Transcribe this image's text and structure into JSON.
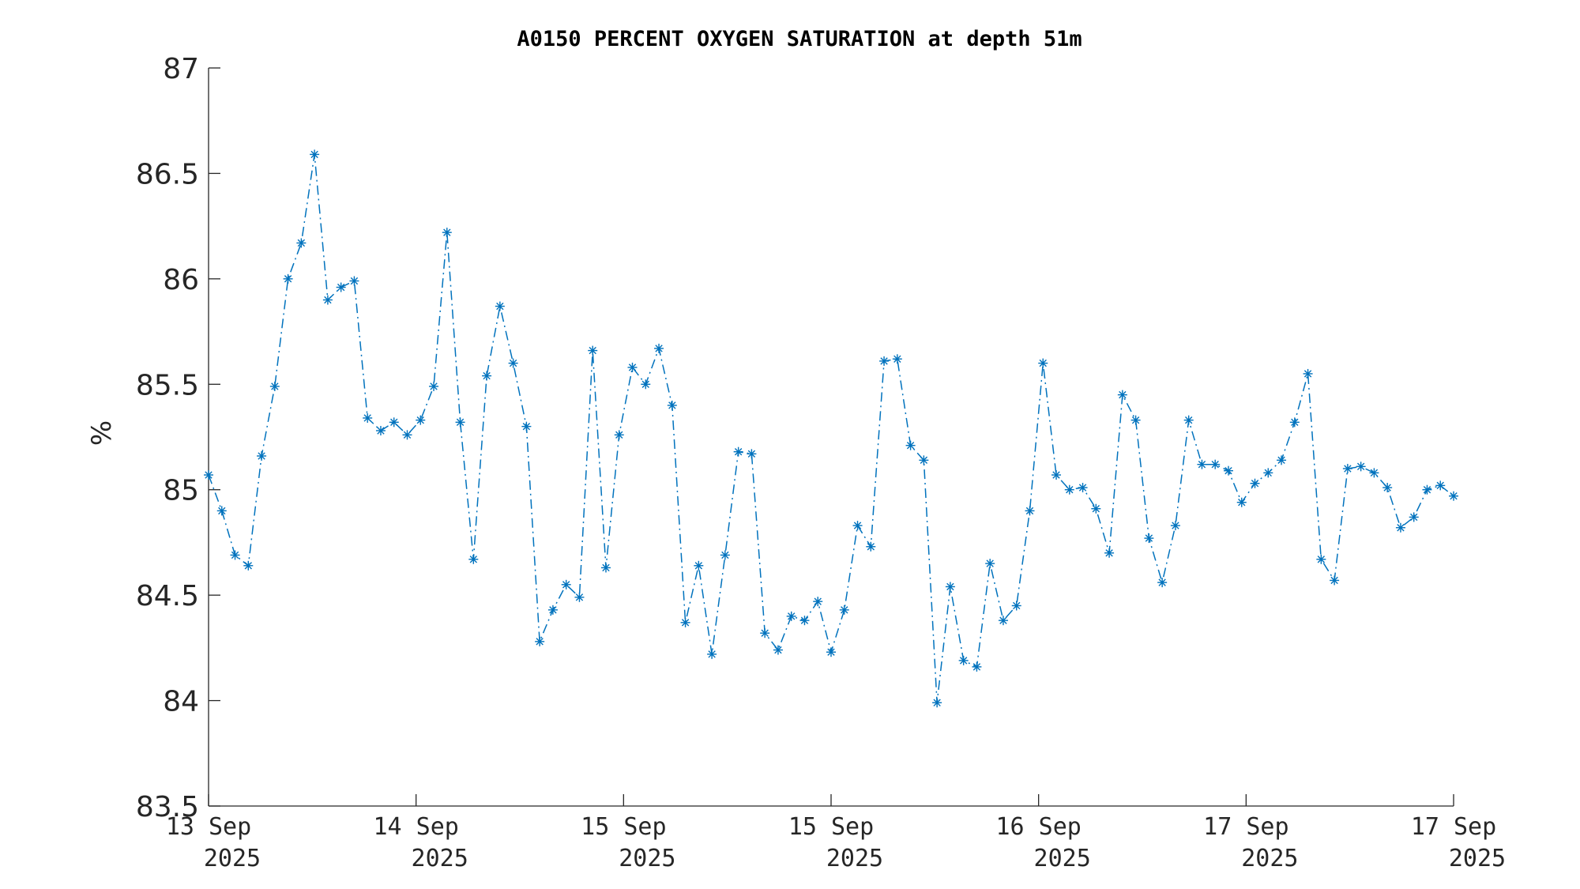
{
  "chart_data": {
    "type": "line",
    "title": "A0150 PERCENT OXYGEN SATURATION at depth 51m",
    "xlabel": "",
    "ylabel": "%",
    "ylim": [
      83.5,
      87
    ],
    "yticks": [
      "83.5",
      "84",
      "84.5",
      "85",
      "85.5",
      "86",
      "86.5",
      "87"
    ],
    "xticks": [
      {
        "line1": "13 Sep",
        "line2": "2025"
      },
      {
        "line1": "14 Sep",
        "line2": "2025"
      },
      {
        "line1": "15 Sep",
        "line2": "2025"
      },
      {
        "line1": "15 Sep",
        "line2": "2025"
      },
      {
        "line1": "16 Sep",
        "line2": "2025"
      },
      {
        "line1": "17 Sep",
        "line2": "2025"
      },
      {
        "line1": "17 Sep",
        "line2": "2025"
      }
    ],
    "grid": false,
    "legend": "none",
    "line_style": "dash-dot",
    "marker": "asterisk",
    "color": "#0072BD",
    "series": [
      {
        "values": [
          85.07,
          84.9,
          84.69,
          84.64,
          85.16,
          85.49,
          86.0,
          86.17,
          86.59,
          85.9,
          85.96,
          85.99,
          85.34,
          85.28,
          85.32,
          85.26,
          85.33,
          85.49,
          86.22,
          85.32,
          84.67,
          85.54,
          85.87,
          85.6,
          85.3,
          84.28,
          84.43,
          84.55,
          84.49,
          85.66,
          84.63,
          85.26,
          85.58,
          85.5,
          85.67,
          85.4,
          84.37,
          84.64,
          84.22,
          84.69,
          85.18,
          85.17,
          84.32,
          84.24,
          84.4,
          84.38,
          84.47,
          84.23,
          84.43,
          84.83,
          84.73,
          85.61,
          85.62,
          85.21,
          85.14,
          83.99,
          84.54,
          84.19,
          84.16,
          84.65,
          84.38,
          84.45,
          84.9,
          85.6,
          85.07,
          85.0,
          85.01,
          84.91,
          84.7,
          85.45,
          85.33,
          84.77,
          84.56,
          84.83,
          85.33,
          85.12,
          85.12,
          85.09,
          84.94,
          85.03,
          85.08,
          85.14,
          85.32,
          85.55,
          84.67,
          84.57,
          85.1,
          85.11,
          85.08,
          85.01,
          84.82,
          84.87,
          85.0,
          85.02,
          84.97
        ]
      }
    ]
  }
}
